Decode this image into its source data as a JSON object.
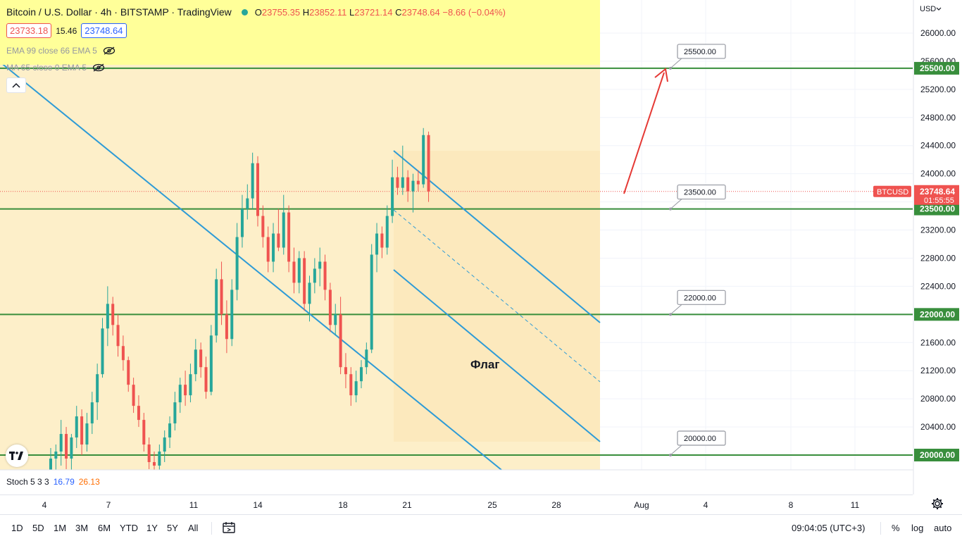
{
  "header": {
    "title": "Bitcoin / U.S. Dollar · 4h · BITSTAMP · TradingView",
    "ohlc": {
      "o_label": "O",
      "o": "23755.35",
      "h_label": "H",
      "h": "23852.11",
      "l_label": "L",
      "l": "23721.14",
      "c_label": "C",
      "c": "23748.64",
      "change": "−8.66 (−0.04%)"
    },
    "bid": "23733.18",
    "spread": "15.46",
    "ask": "23748.64",
    "indicator1": "EMA 99 close 66 EMA 5",
    "indicator2": "MA 65 close 0 EMA 5"
  },
  "price_axis": {
    "currency": "USD",
    "ticks": [
      "26000.00",
      "25600.00",
      "25200.00",
      "24800.00",
      "24400.00",
      "24000.00",
      "23600.00",
      "23200.00",
      "22800.00",
      "22400.00",
      "22000.00",
      "21600.00",
      "21200.00",
      "20800.00",
      "20400.00",
      "20000.00"
    ],
    "symbol_tag": "BTCUSD",
    "last_price": "23748.64",
    "countdown": "01:55:55",
    "level_labels": [
      "25500.00",
      "23500.00",
      "22000.00",
      "20000.00"
    ]
  },
  "time_axis": {
    "labels": [
      "4",
      "7",
      "11",
      "14",
      "18",
      "21",
      "25",
      "28",
      "Aug",
      "4",
      "8",
      "11"
    ]
  },
  "stoch": {
    "name": "Stoch 5 3 3",
    "k": "16.79",
    "d": "26.13"
  },
  "bottom_bar": {
    "ranges": [
      "1D",
      "5D",
      "1M",
      "3M",
      "6M",
      "YTD",
      "1Y",
      "5Y",
      "All"
    ],
    "clock": "09:04:05 (UTC+3)",
    "pct": "%",
    "log": "log",
    "auto": "auto"
  },
  "colors": {
    "up": "#26a69a",
    "down": "#ef5350",
    "level": "#388e3c",
    "channel": "#2e9bd6",
    "zone": "#fdefc9",
    "arrow": "#e53935"
  },
  "chart_data": {
    "type": "candlestick",
    "symbol": "BTCUSD",
    "timeframe": "4h",
    "ylim": [
      19600,
      26300
    ],
    "annotation_text": "Флаг",
    "horizontal_levels": [
      25500,
      23500,
      22000,
      20000
    ],
    "last_price": 23748.64,
    "candles": [
      {
        "o": 19250,
        "h": 20100,
        "l": 19050,
        "c": 19950
      },
      {
        "o": 19950,
        "h": 20150,
        "l": 19700,
        "c": 20050
      },
      {
        "o": 20050,
        "h": 20500,
        "l": 19850,
        "c": 20300
      },
      {
        "o": 20300,
        "h": 20400,
        "l": 19800,
        "c": 19950
      },
      {
        "o": 19950,
        "h": 20300,
        "l": 19700,
        "c": 20250
      },
      {
        "o": 20250,
        "h": 20700,
        "l": 20100,
        "c": 20550
      },
      {
        "o": 20550,
        "h": 20650,
        "l": 20000,
        "c": 20150
      },
      {
        "o": 20150,
        "h": 20600,
        "l": 20050,
        "c": 20450
      },
      {
        "o": 20450,
        "h": 20900,
        "l": 20300,
        "c": 20750
      },
      {
        "o": 20750,
        "h": 21300,
        "l": 20500,
        "c": 21150
      },
      {
        "o": 21150,
        "h": 21950,
        "l": 21100,
        "c": 21800
      },
      {
        "o": 21800,
        "h": 22400,
        "l": 21550,
        "c": 22150
      },
      {
        "o": 22150,
        "h": 22250,
        "l": 21700,
        "c": 21850
      },
      {
        "o": 21850,
        "h": 22000,
        "l": 21400,
        "c": 21550
      },
      {
        "o": 21550,
        "h": 21700,
        "l": 21200,
        "c": 21350
      },
      {
        "o": 21350,
        "h": 21400,
        "l": 20900,
        "c": 21000
      },
      {
        "o": 21000,
        "h": 21100,
        "l": 20600,
        "c": 20700
      },
      {
        "o": 20700,
        "h": 20850,
        "l": 20400,
        "c": 20500
      },
      {
        "o": 20500,
        "h": 20600,
        "l": 20050,
        "c": 20150
      },
      {
        "o": 20150,
        "h": 20250,
        "l": 19800,
        "c": 19900
      },
      {
        "o": 19900,
        "h": 20050,
        "l": 19650,
        "c": 19850
      },
      {
        "o": 19850,
        "h": 20150,
        "l": 19750,
        "c": 20050
      },
      {
        "o": 20050,
        "h": 20350,
        "l": 19900,
        "c": 20250
      },
      {
        "o": 20250,
        "h": 20550,
        "l": 20100,
        "c": 20450
      },
      {
        "o": 20450,
        "h": 20900,
        "l": 20350,
        "c": 20750
      },
      {
        "o": 20750,
        "h": 21100,
        "l": 20600,
        "c": 21000
      },
      {
        "o": 21000,
        "h": 21200,
        "l": 20700,
        "c": 20850
      },
      {
        "o": 20850,
        "h": 21300,
        "l": 20750,
        "c": 21150
      },
      {
        "o": 21150,
        "h": 21650,
        "l": 21050,
        "c": 21500
      },
      {
        "o": 21500,
        "h": 21600,
        "l": 21100,
        "c": 21250
      },
      {
        "o": 21250,
        "h": 21400,
        "l": 20800,
        "c": 20900
      },
      {
        "o": 20900,
        "h": 21850,
        "l": 20850,
        "c": 21700
      },
      {
        "o": 21700,
        "h": 22650,
        "l": 21600,
        "c": 22500
      },
      {
        "o": 22500,
        "h": 22750,
        "l": 21850,
        "c": 22000
      },
      {
        "o": 22000,
        "h": 22200,
        "l": 21450,
        "c": 21650
      },
      {
        "o": 21650,
        "h": 22500,
        "l": 21550,
        "c": 22350
      },
      {
        "o": 22350,
        "h": 23300,
        "l": 22200,
        "c": 23100
      },
      {
        "o": 23100,
        "h": 23700,
        "l": 22950,
        "c": 23500
      },
      {
        "o": 23500,
        "h": 23850,
        "l": 23350,
        "c": 23650
      },
      {
        "o": 23650,
        "h": 24300,
        "l": 23500,
        "c": 24150
      },
      {
        "o": 24150,
        "h": 24250,
        "l": 23250,
        "c": 23400
      },
      {
        "o": 23400,
        "h": 23550,
        "l": 22950,
        "c": 23100
      },
      {
        "o": 23100,
        "h": 23250,
        "l": 22600,
        "c": 22750
      },
      {
        "o": 22750,
        "h": 23300,
        "l": 22600,
        "c": 23150
      },
      {
        "o": 23150,
        "h": 23500,
        "l": 22900,
        "c": 22950
      },
      {
        "o": 22950,
        "h": 23700,
        "l": 22850,
        "c": 23450
      },
      {
        "o": 23450,
        "h": 23550,
        "l": 22600,
        "c": 22750
      },
      {
        "o": 22750,
        "h": 22950,
        "l": 22300,
        "c": 22450
      },
      {
        "o": 22450,
        "h": 22900,
        "l": 22300,
        "c": 22800
      },
      {
        "o": 22800,
        "h": 22900,
        "l": 22050,
        "c": 22150
      },
      {
        "o": 22150,
        "h": 22550,
        "l": 21900,
        "c": 22450
      },
      {
        "o": 22450,
        "h": 22800,
        "l": 22300,
        "c": 22650
      },
      {
        "o": 22650,
        "h": 22950,
        "l": 22400,
        "c": 22750
      },
      {
        "o": 22750,
        "h": 22850,
        "l": 22200,
        "c": 22350
      },
      {
        "o": 22350,
        "h": 22450,
        "l": 21750,
        "c": 21850
      },
      {
        "o": 21850,
        "h": 22150,
        "l": 21700,
        "c": 22000
      },
      {
        "o": 22000,
        "h": 22250,
        "l": 21150,
        "c": 21250
      },
      {
        "o": 21250,
        "h": 21450,
        "l": 20950,
        "c": 21150
      },
      {
        "o": 21150,
        "h": 21250,
        "l": 20700,
        "c": 20850
      },
      {
        "o": 20850,
        "h": 21200,
        "l": 20750,
        "c": 21050
      },
      {
        "o": 21050,
        "h": 21350,
        "l": 20950,
        "c": 21250
      },
      {
        "o": 21250,
        "h": 21600,
        "l": 21150,
        "c": 21500
      },
      {
        "o": 21500,
        "h": 23000,
        "l": 21450,
        "c": 22850
      },
      {
        "o": 22850,
        "h": 23300,
        "l": 22600,
        "c": 23150
      },
      {
        "o": 23150,
        "h": 23250,
        "l": 22800,
        "c": 22950
      },
      {
        "o": 22950,
        "h": 23550,
        "l": 22850,
        "c": 23400
      },
      {
        "o": 23400,
        "h": 24200,
        "l": 23300,
        "c": 23950
      },
      {
        "o": 23950,
        "h": 24100,
        "l": 23700,
        "c": 23800
      },
      {
        "o": 23800,
        "h": 24400,
        "l": 23700,
        "c": 23950
      },
      {
        "o": 23950,
        "h": 24050,
        "l": 23600,
        "c": 23750
      },
      {
        "o": 23750,
        "h": 24000,
        "l": 23450,
        "c": 23900
      },
      {
        "o": 23900,
        "h": 24050,
        "l": 23750,
        "c": 23850
      },
      {
        "o": 23850,
        "h": 24650,
        "l": 23800,
        "c": 24550
      },
      {
        "o": 24550,
        "h": 24600,
        "l": 23600,
        "c": 23750
      }
    ]
  }
}
